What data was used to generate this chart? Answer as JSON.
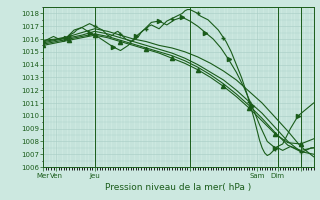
{
  "xlabel": "Pression niveau de la mer( hPa )",
  "ylim": [
    1006,
    1018.5
  ],
  "yticks": [
    1006,
    1007,
    1008,
    1009,
    1010,
    1011,
    1012,
    1013,
    1014,
    1015,
    1016,
    1017,
    1018
  ],
  "background_color": "#cce8e0",
  "plot_bg_color": "#cce8e0",
  "line_color": "#1a5c1a",
  "grid_color": "#a8ccc4",
  "series": [
    {
      "x": [
        0,
        1,
        2,
        3,
        4,
        5,
        6,
        7,
        8,
        9,
        10,
        11,
        12,
        13,
        14,
        15,
        16,
        17,
        18,
        19,
        20,
        21,
        22,
        23,
        24,
        25,
        26,
        27,
        28,
        29,
        30,
        31,
        32,
        33,
        34,
        35,
        36,
        37,
        38,
        39,
        40,
        41,
        42,
        43,
        44,
        45,
        46,
        47,
        48,
        49,
        50,
        51,
        52,
        53,
        54,
        55,
        56,
        57,
        58,
        59,
        60,
        61,
        62,
        63,
        64,
        65,
        66,
        67,
        68,
        69,
        70,
        71,
        72,
        73,
        74,
        75,
        76,
        77,
        78,
        79,
        80,
        81,
        82,
        83,
        84,
        85,
        86,
        87,
        88,
        89,
        90,
        91,
        92,
        93,
        94,
        95,
        96,
        97,
        98,
        99,
        100,
        101,
        102,
        103,
        104,
        105
      ],
      "y": [
        1015.8,
        1015.9,
        1016.0,
        1016.1,
        1016.2,
        1016.1,
        1016.0,
        1015.9,
        1015.8,
        1016.0,
        1016.2,
        1016.4,
        1016.5,
        1016.7,
        1016.8,
        1016.9,
        1017.0,
        1017.1,
        1017.2,
        1017.1,
        1017.0,
        1016.9,
        1016.8,
        1016.7,
        1016.5,
        1016.3,
        1016.2,
        1016.3,
        1016.5,
        1016.6,
        1016.4,
        1016.2,
        1016.0,
        1015.9,
        1015.8,
        1015.9,
        1016.0,
        1016.2,
        1016.5,
        1016.7,
        1016.8,
        1017.0,
        1017.1,
        1017.0,
        1016.9,
        1016.8,
        1017.0,
        1017.2,
        1017.4,
        1017.5,
        1017.6,
        1017.7,
        1017.8,
        1017.9,
        1018.0,
        1018.2,
        1018.3,
        1018.3,
        1018.2,
        1018.1,
        1018.0,
        1017.8,
        1017.7,
        1017.6,
        1017.5,
        1017.3,
        1017.1,
        1016.9,
        1016.7,
        1016.4,
        1016.1,
        1015.8,
        1015.4,
        1015.0,
        1014.5,
        1014.0,
        1013.5,
        1013.0,
        1012.4,
        1011.8,
        1011.1,
        1010.4,
        1009.7,
        1008.9,
        1008.1,
        1007.5,
        1007.1,
        1006.9,
        1007.0,
        1007.2,
        1007.4,
        1007.5,
        1007.4,
        1007.3,
        1007.4,
        1007.5,
        1007.6,
        1007.5,
        1007.4,
        1007.3,
        1007.2,
        1007.2,
        1007.3,
        1007.4,
        1007.5,
        1007.5
      ],
      "marker": "+"
    },
    {
      "x": [
        0,
        3,
        6,
        9,
        12,
        15,
        18,
        21,
        24,
        27,
        30,
        33,
        36,
        39,
        42,
        45,
        48,
        51,
        54,
        57,
        60,
        63,
        66,
        69,
        72,
        75,
        78,
        81,
        84,
        87,
        90,
        93,
        96,
        99,
        102,
        105
      ],
      "y": [
        1015.8,
        1015.9,
        1016.0,
        1016.1,
        1016.7,
        1016.9,
        1016.5,
        1016.2,
        1015.8,
        1015.4,
        1015.1,
        1015.5,
        1016.2,
        1016.7,
        1017.3,
        1017.4,
        1017.1,
        1017.5,
        1017.7,
        1017.4,
        1017.0,
        1016.5,
        1016.0,
        1015.3,
        1014.4,
        1013.4,
        1012.2,
        1010.8,
        1009.3,
        1008.0,
        1007.5,
        1007.8,
        1009.0,
        1010.0,
        1010.5,
        1011.0
      ],
      "marker": ">"
    },
    {
      "x": [
        0,
        5,
        10,
        15,
        20,
        25,
        30,
        35,
        40,
        45,
        50,
        55,
        60,
        65,
        70,
        75,
        80,
        85,
        90,
        95,
        100,
        105
      ],
      "y": [
        1015.9,
        1016.0,
        1016.2,
        1016.5,
        1016.8,
        1016.6,
        1016.3,
        1016.0,
        1015.8,
        1015.5,
        1015.3,
        1015.0,
        1014.6,
        1014.1,
        1013.5,
        1012.8,
        1011.9,
        1011.0,
        1009.9,
        1008.8,
        1007.6,
        1006.8
      ],
      "marker": null
    },
    {
      "x": [
        0,
        5,
        10,
        15,
        20,
        25,
        30,
        35,
        40,
        45,
        50,
        55,
        60,
        65,
        70,
        75,
        80,
        85,
        90,
        95,
        100,
        105
      ],
      "y": [
        1015.7,
        1015.9,
        1016.1,
        1016.3,
        1016.6,
        1016.4,
        1016.1,
        1015.8,
        1015.5,
        1015.2,
        1014.9,
        1014.5,
        1014.0,
        1013.4,
        1012.8,
        1012.0,
        1011.1,
        1010.2,
        1009.1,
        1008.0,
        1007.2,
        1007.0
      ],
      "marker": null
    },
    {
      "x": [
        0,
        5,
        10,
        15,
        20,
        25,
        30,
        35,
        40,
        45,
        50,
        55,
        60,
        65,
        70,
        75,
        80,
        85,
        90,
        95,
        100,
        105
      ],
      "y": [
        1015.6,
        1015.8,
        1016.0,
        1016.2,
        1016.4,
        1016.2,
        1015.9,
        1015.6,
        1015.3,
        1015.0,
        1014.7,
        1014.3,
        1013.8,
        1013.2,
        1012.5,
        1011.7,
        1010.8,
        1009.8,
        1008.7,
        1007.7,
        1007.3,
        1007.5
      ],
      "marker": null
    },
    {
      "x": [
        0,
        5,
        10,
        15,
        20,
        25,
        30,
        35,
        40,
        45,
        50,
        55,
        60,
        65,
        70,
        75,
        80,
        85,
        90,
        95,
        100,
        105
      ],
      "y": [
        1015.5,
        1015.7,
        1015.9,
        1016.1,
        1016.3,
        1016.1,
        1015.8,
        1015.5,
        1015.2,
        1014.9,
        1014.5,
        1014.1,
        1013.6,
        1013.0,
        1012.3,
        1011.5,
        1010.6,
        1009.6,
        1008.6,
        1007.9,
        1007.8,
        1008.2
      ],
      "marker": "^"
    }
  ],
  "vline_positions": [
    20,
    57,
    91,
    100
  ],
  "xtick_positions": [
    0,
    5,
    20,
    57,
    83,
    91,
    100
  ],
  "xtick_labels": [
    "Mer",
    "Ven",
    "Jeu",
    "",
    "Sam",
    "Dim",
    ""
  ]
}
